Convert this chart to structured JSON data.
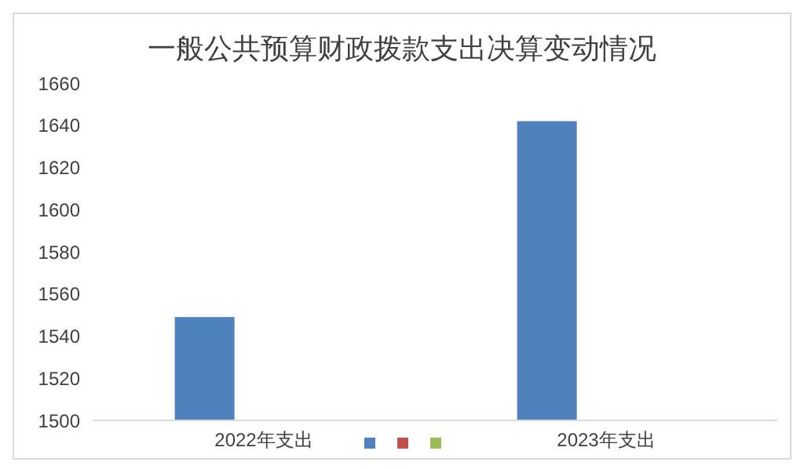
{
  "chart_data": {
    "type": "bar",
    "title": "一般公共预算财政拨款支出决算变动情况",
    "categories": [
      "2022年支出",
      "2023年支出"
    ],
    "series": [
      {
        "color": "#4f81bd",
        "values": [
          1549,
          1642
        ]
      },
      {
        "color": "#c0504d",
        "values": [
          null,
          null
        ]
      },
      {
        "color": "#9bbb59",
        "values": [
          null,
          null
        ]
      }
    ],
    "ylim": [
      1500,
      1660
    ],
    "yticks": [
      1500,
      1520,
      1540,
      1560,
      1580,
      1600,
      1620,
      1640,
      1660
    ],
    "grid": false
  }
}
